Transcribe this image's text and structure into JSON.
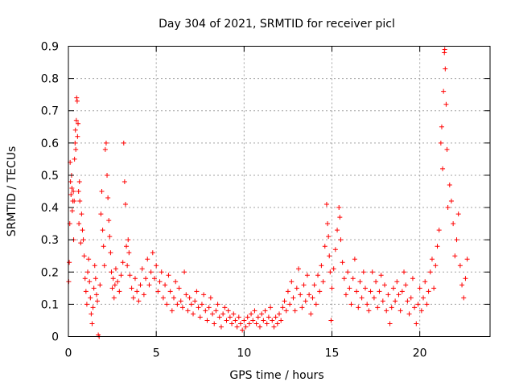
{
  "chart_data": {
    "type": "scatter",
    "title": "Day 304 of 2021, SRMTID for receiver picl",
    "xlabel": "GPS time / hours",
    "ylabel": "SRMTID / TECUs",
    "xlim": [
      0,
      24
    ],
    "ylim": [
      0,
      0.9
    ],
    "xticks": [
      0,
      5,
      10,
      15,
      20
    ],
    "yticks": [
      0,
      0.1,
      0.2,
      0.3,
      0.4,
      0.5,
      0.6,
      0.7,
      0.8,
      0.9
    ],
    "grid": true,
    "marker": "+",
    "color": "#ff0000",
    "series": [
      {
        "name": "SRMTID",
        "points": [
          [
            0.02,
            0.17
          ],
          [
            0.05,
            0.23
          ],
          [
            0.08,
            0.35
          ],
          [
            0.1,
            0.54
          ],
          [
            0.12,
            0.48
          ],
          [
            0.15,
            0.44
          ],
          [
            0.18,
            0.5
          ],
          [
            0.2,
            0.46
          ],
          [
            0.22,
            0.39
          ],
          [
            0.25,
            0.42
          ],
          [
            0.28,
            0.45
          ],
          [
            0.3,
            0.3
          ],
          [
            0.33,
            0.42
          ],
          [
            0.35,
            0.55
          ],
          [
            0.38,
            0.6
          ],
          [
            0.4,
            0.64
          ],
          [
            0.42,
            0.58
          ],
          [
            0.45,
            0.67
          ],
          [
            0.47,
            0.74
          ],
          [
            0.5,
            0.73
          ],
          [
            0.52,
            0.62
          ],
          [
            0.55,
            0.66
          ],
          [
            0.58,
            0.45
          ],
          [
            0.6,
            0.35
          ],
          [
            0.63,
            0.48
          ],
          [
            0.65,
            0.42
          ],
          [
            0.7,
            0.29
          ],
          [
            0.75,
            0.38
          ],
          [
            0.8,
            0.33
          ],
          [
            0.85,
            0.3
          ],
          [
            0.9,
            0.25
          ],
          [
            0.95,
            0.18
          ],
          [
            1.0,
            0.14
          ],
          [
            1.05,
            0.1
          ],
          [
            1.1,
            0.2
          ],
          [
            1.15,
            0.24
          ],
          [
            1.2,
            0.17
          ],
          [
            1.25,
            0.12
          ],
          [
            1.3,
            0.07
          ],
          [
            1.35,
            0.04
          ],
          [
            1.4,
            0.09
          ],
          [
            1.45,
            0.15
          ],
          [
            1.5,
            0.22
          ],
          [
            1.55,
            0.18
          ],
          [
            1.6,
            0.13
          ],
          [
            1.65,
            0.11
          ],
          [
            1.7,
            0.005
          ],
          [
            1.75,
            0.0
          ],
          [
            1.8,
            0.16
          ],
          [
            1.85,
            0.38
          ],
          [
            1.9,
            0.45
          ],
          [
            1.95,
            0.33
          ],
          [
            2.0,
            0.28
          ],
          [
            2.05,
            0.22
          ],
          [
            2.1,
            0.58
          ],
          [
            2.15,
            0.6
          ],
          [
            2.2,
            0.5
          ],
          [
            2.25,
            0.43
          ],
          [
            2.3,
            0.36
          ],
          [
            2.35,
            0.31
          ],
          [
            2.4,
            0.26
          ],
          [
            2.45,
            0.2
          ],
          [
            2.5,
            0.15
          ],
          [
            2.55,
            0.18
          ],
          [
            2.6,
            0.12
          ],
          [
            2.65,
            0.16
          ],
          [
            2.7,
            0.21
          ],
          [
            2.8,
            0.17
          ],
          [
            2.9,
            0.14
          ],
          [
            3.0,
            0.19
          ],
          [
            3.1,
            0.23
          ],
          [
            3.15,
            0.6
          ],
          [
            3.2,
            0.48
          ],
          [
            3.25,
            0.41
          ],
          [
            3.3,
            0.28
          ],
          [
            3.35,
            0.22
          ],
          [
            3.4,
            0.3
          ],
          [
            3.45,
            0.26
          ],
          [
            3.5,
            0.19
          ],
          [
            3.6,
            0.15
          ],
          [
            3.7,
            0.12
          ],
          [
            3.8,
            0.18
          ],
          [
            3.9,
            0.14
          ],
          [
            4.0,
            0.11
          ],
          [
            4.1,
            0.16
          ],
          [
            4.2,
            0.21
          ],
          [
            4.3,
            0.13
          ],
          [
            4.4,
            0.18
          ],
          [
            4.5,
            0.24
          ],
          [
            4.6,
            0.16
          ],
          [
            4.7,
            0.2
          ],
          [
            4.8,
            0.26
          ],
          [
            4.9,
            0.18
          ],
          [
            5.0,
            0.22
          ],
          [
            5.1,
            0.14
          ],
          [
            5.2,
            0.17
          ],
          [
            5.3,
            0.2
          ],
          [
            5.4,
            0.12
          ],
          [
            5.5,
            0.16
          ],
          [
            5.6,
            0.1
          ],
          [
            5.7,
            0.19
          ],
          [
            5.8,
            0.14
          ],
          [
            5.9,
            0.08
          ],
          [
            6.0,
            0.12
          ],
          [
            6.1,
            0.17
          ],
          [
            6.2,
            0.1
          ],
          [
            6.3,
            0.15
          ],
          [
            6.4,
            0.11
          ],
          [
            6.5,
            0.09
          ],
          [
            6.6,
            0.2
          ],
          [
            6.7,
            0.13
          ],
          [
            6.8,
            0.08
          ],
          [
            6.9,
            0.12
          ],
          [
            7.0,
            0.1
          ],
          [
            7.1,
            0.07
          ],
          [
            7.2,
            0.11
          ],
          [
            7.3,
            0.14
          ],
          [
            7.4,
            0.09
          ],
          [
            7.5,
            0.06
          ],
          [
            7.6,
            0.1
          ],
          [
            7.7,
            0.13
          ],
          [
            7.8,
            0.08
          ],
          [
            7.9,
            0.05
          ],
          [
            8.0,
            0.09
          ],
          [
            8.1,
            0.12
          ],
          [
            8.2,
            0.07
          ],
          [
            8.3,
            0.04
          ],
          [
            8.4,
            0.08
          ],
          [
            8.5,
            0.1
          ],
          [
            8.6,
            0.06
          ],
          [
            8.7,
            0.03
          ],
          [
            8.8,
            0.07
          ],
          [
            8.9,
            0.09
          ],
          [
            9.0,
            0.05
          ],
          [
            9.1,
            0.08
          ],
          [
            9.2,
            0.06
          ],
          [
            9.3,
            0.04
          ],
          [
            9.4,
            0.07
          ],
          [
            9.5,
            0.05
          ],
          [
            9.6,
            0.03
          ],
          [
            9.7,
            0.06
          ],
          [
            9.8,
            0.04
          ],
          [
            9.9,
            0.02
          ],
          [
            10.0,
            0.05
          ],
          [
            10.1,
            0.03
          ],
          [
            10.2,
            0.06
          ],
          [
            10.3,
            0.04
          ],
          [
            10.4,
            0.07
          ],
          [
            10.5,
            0.05
          ],
          [
            10.6,
            0.08
          ],
          [
            10.7,
            0.04
          ],
          [
            10.8,
            0.06
          ],
          [
            10.9,
            0.03
          ],
          [
            11.0,
            0.07
          ],
          [
            11.1,
            0.05
          ],
          [
            11.2,
            0.08
          ],
          [
            11.3,
            0.04
          ],
          [
            11.4,
            0.06
          ],
          [
            11.5,
            0.09
          ],
          [
            11.6,
            0.05
          ],
          [
            11.7,
            0.03
          ],
          [
            11.8,
            0.06
          ],
          [
            11.9,
            0.04
          ],
          [
            12.0,
            0.07
          ],
          [
            12.1,
            0.05
          ],
          [
            12.2,
            0.09
          ],
          [
            12.3,
            0.11
          ],
          [
            12.4,
            0.08
          ],
          [
            12.5,
            0.14
          ],
          [
            12.6,
            0.1
          ],
          [
            12.7,
            0.17
          ],
          [
            12.8,
            0.12
          ],
          [
            12.9,
            0.08
          ],
          [
            13.0,
            0.15
          ],
          [
            13.1,
            0.21
          ],
          [
            13.2,
            0.13
          ],
          [
            13.3,
            0.09
          ],
          [
            13.4,
            0.16
          ],
          [
            13.5,
            0.11
          ],
          [
            13.6,
            0.19
          ],
          [
            13.7,
            0.13
          ],
          [
            13.8,
            0.07
          ],
          [
            13.9,
            0.12
          ],
          [
            14.0,
            0.16
          ],
          [
            14.1,
            0.1
          ],
          [
            14.2,
            0.19
          ],
          [
            14.3,
            0.14
          ],
          [
            14.4,
            0.22
          ],
          [
            14.5,
            0.17
          ],
          [
            14.6,
            0.28
          ],
          [
            14.7,
            0.41
          ],
          [
            14.75,
            0.35
          ],
          [
            14.8,
            0.31
          ],
          [
            14.85,
            0.25
          ],
          [
            14.9,
            0.2
          ],
          [
            14.95,
            0.05
          ],
          [
            15.0,
            0.15
          ],
          [
            15.1,
            0.21
          ],
          [
            15.2,
            0.27
          ],
          [
            15.3,
            0.33
          ],
          [
            15.4,
            0.4
          ],
          [
            15.45,
            0.37
          ],
          [
            15.5,
            0.3
          ],
          [
            15.6,
            0.23
          ],
          [
            15.7,
            0.18
          ],
          [
            15.8,
            0.13
          ],
          [
            15.9,
            0.2
          ],
          [
            16.0,
            0.15
          ],
          [
            16.1,
            0.1
          ],
          [
            16.2,
            0.18
          ],
          [
            16.3,
            0.24
          ],
          [
            16.4,
            0.14
          ],
          [
            16.5,
            0.09
          ],
          [
            16.6,
            0.17
          ],
          [
            16.7,
            0.12
          ],
          [
            16.8,
            0.2
          ],
          [
            16.9,
            0.15
          ],
          [
            17.0,
            0.1
          ],
          [
            17.1,
            0.08
          ],
          [
            17.2,
            0.14
          ],
          [
            17.3,
            0.2
          ],
          [
            17.4,
            0.12
          ],
          [
            17.5,
            0.17
          ],
          [
            17.6,
            0.09
          ],
          [
            17.7,
            0.14
          ],
          [
            17.8,
            0.19
          ],
          [
            17.9,
            0.11
          ],
          [
            18.0,
            0.16
          ],
          [
            18.1,
            0.08
          ],
          [
            18.2,
            0.13
          ],
          [
            18.3,
            0.04
          ],
          [
            18.4,
            0.09
          ],
          [
            18.5,
            0.15
          ],
          [
            18.6,
            0.11
          ],
          [
            18.7,
            0.17
          ],
          [
            18.8,
            0.13
          ],
          [
            18.9,
            0.08
          ],
          [
            19.0,
            0.14
          ],
          [
            19.1,
            0.2
          ],
          [
            19.2,
            0.16
          ],
          [
            19.3,
            0.11
          ],
          [
            19.4,
            0.07
          ],
          [
            19.5,
            0.12
          ],
          [
            19.6,
            0.18
          ],
          [
            19.7,
            0.09
          ],
          [
            19.8,
            0.04
          ],
          [
            19.9,
            0.1
          ],
          [
            20.0,
            0.15
          ],
          [
            20.1,
            0.08
          ],
          [
            20.2,
            0.12
          ],
          [
            20.3,
            0.17
          ],
          [
            20.4,
            0.1
          ],
          [
            20.5,
            0.14
          ],
          [
            20.6,
            0.2
          ],
          [
            20.7,
            0.24
          ],
          [
            20.8,
            0.15
          ],
          [
            20.9,
            0.22
          ],
          [
            21.0,
            0.28
          ],
          [
            21.1,
            0.33
          ],
          [
            21.2,
            0.6
          ],
          [
            21.25,
            0.65
          ],
          [
            21.3,
            0.52
          ],
          [
            21.35,
            0.76
          ],
          [
            21.4,
            0.88
          ],
          [
            21.42,
            0.89
          ],
          [
            21.45,
            0.83
          ],
          [
            21.5,
            0.72
          ],
          [
            21.55,
            0.58
          ],
          [
            21.6,
            0.4
          ],
          [
            21.7,
            0.47
          ],
          [
            21.8,
            0.42
          ],
          [
            21.9,
            0.35
          ],
          [
            22.0,
            0.25
          ],
          [
            22.1,
            0.3
          ],
          [
            22.2,
            0.38
          ],
          [
            22.3,
            0.22
          ],
          [
            22.4,
            0.16
          ],
          [
            22.5,
            0.12
          ],
          [
            22.6,
            0.18
          ],
          [
            22.7,
            0.24
          ]
        ]
      }
    ]
  }
}
